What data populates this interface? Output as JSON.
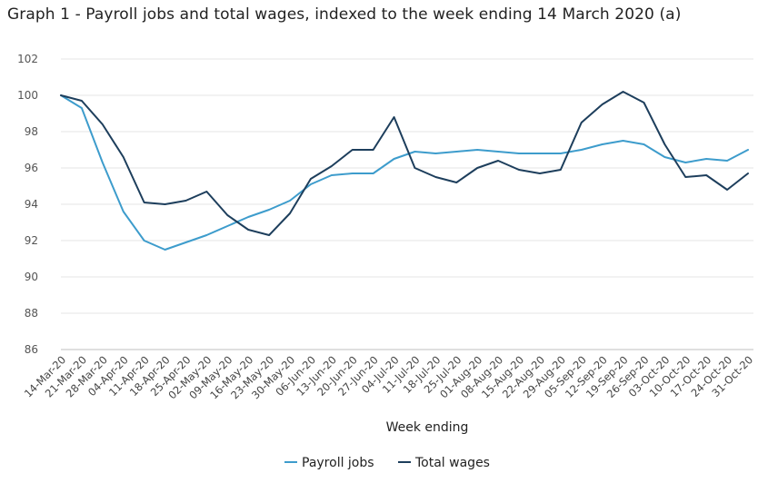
{
  "chart_data": {
    "type": "line",
    "title": "Graph 1 - Payroll jobs and total wages, indexed to the week ending 14 March 2020 (a)",
    "xlabel": "Week ending",
    "ylabel": "",
    "ylim": [
      86,
      102
    ],
    "yticks": [
      86,
      88,
      90,
      92,
      94,
      96,
      98,
      100,
      102
    ],
    "grid": true,
    "legend_position": "bottom-center",
    "categories": [
      "14-Mar-20",
      "21-Mar-20",
      "28-Mar-20",
      "04-Apr-20",
      "11-Apr-20",
      "18-Apr-20",
      "25-Apr-20",
      "02-May-20",
      "09-May-20",
      "16-May-20",
      "23-May-20",
      "30-May-20",
      "06-Jun-20",
      "13-Jun-20",
      "20-Jun-20",
      "27-Jun-20",
      "04-Jul-20",
      "11-Jul-20",
      "18-Jul-20",
      "25-Jul-20",
      "01-Aug-20",
      "08-Aug-20",
      "15-Aug-20",
      "22-Aug-20",
      "29-Aug-20",
      "05-Sep-20",
      "12-Sep-20",
      "19-Sep-20",
      "26-Sep-20",
      "03-Oct-20",
      "10-Oct-20",
      "17-Oct-20",
      "24-Oct-20",
      "31-Oct-20"
    ],
    "series": [
      {
        "name": "Payroll jobs",
        "color": "#3d9ccc",
        "values": [
          100.0,
          99.3,
          96.3,
          93.6,
          92.0,
          91.5,
          91.9,
          92.3,
          92.8,
          93.3,
          93.7,
          94.2,
          95.1,
          95.6,
          95.7,
          95.7,
          96.5,
          96.9,
          96.8,
          96.9,
          97.0,
          96.9,
          96.8,
          96.8,
          96.8,
          97.0,
          97.3,
          97.5,
          97.3,
          96.6,
          96.3,
          96.5,
          96.4,
          97.0
        ]
      },
      {
        "name": "Total wages",
        "color": "#1d3e5c",
        "values": [
          100.0,
          99.7,
          98.4,
          96.6,
          94.1,
          94.0,
          94.2,
          94.7,
          93.4,
          92.6,
          92.3,
          93.5,
          95.4,
          96.1,
          97.0,
          97.0,
          98.8,
          96.0,
          95.5,
          95.2,
          96.0,
          96.4,
          95.9,
          95.7,
          95.9,
          98.5,
          99.5,
          100.2,
          99.6,
          97.3,
          95.5,
          95.6,
          94.8,
          95.7
        ]
      }
    ]
  }
}
